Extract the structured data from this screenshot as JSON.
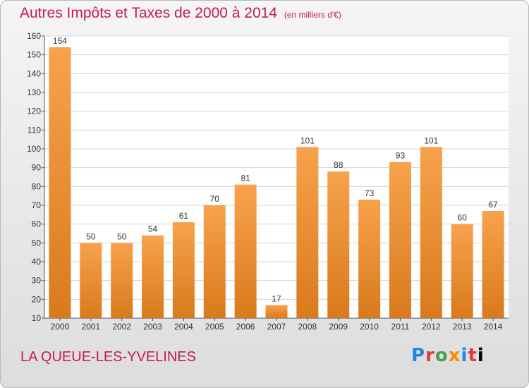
{
  "title": "Autres Impôts et Taxes de 2000 à 2014",
  "subtitle": "(en milliers d'€)",
  "commune": "LA QUEUE-LES-YVELINES",
  "logo_text": "Proxiti",
  "colors": {
    "title": "#c2185b",
    "bar_top": "#f7a24c",
    "bar_bottom": "#d97a1c",
    "grid": "#d4d4d4"
  },
  "chart_data": {
    "type": "bar",
    "categories": [
      "2000",
      "2001",
      "2002",
      "2003",
      "2004",
      "2005",
      "2006",
      "2007",
      "2008",
      "2009",
      "2010",
      "2011",
      "2012",
      "2013",
      "2014"
    ],
    "values": [
      154,
      50,
      50,
      54,
      61,
      70,
      81,
      17,
      101,
      88,
      73,
      93,
      101,
      60,
      67
    ],
    "title": "Autres Impôts et Taxes de 2000 à 2014",
    "subtitle": "(en milliers d'€)",
    "ylim": [
      10,
      160
    ],
    "yticks": [
      10,
      20,
      30,
      40,
      50,
      60,
      70,
      80,
      90,
      100,
      110,
      120,
      130,
      140,
      150,
      160
    ],
    "grid": true
  }
}
